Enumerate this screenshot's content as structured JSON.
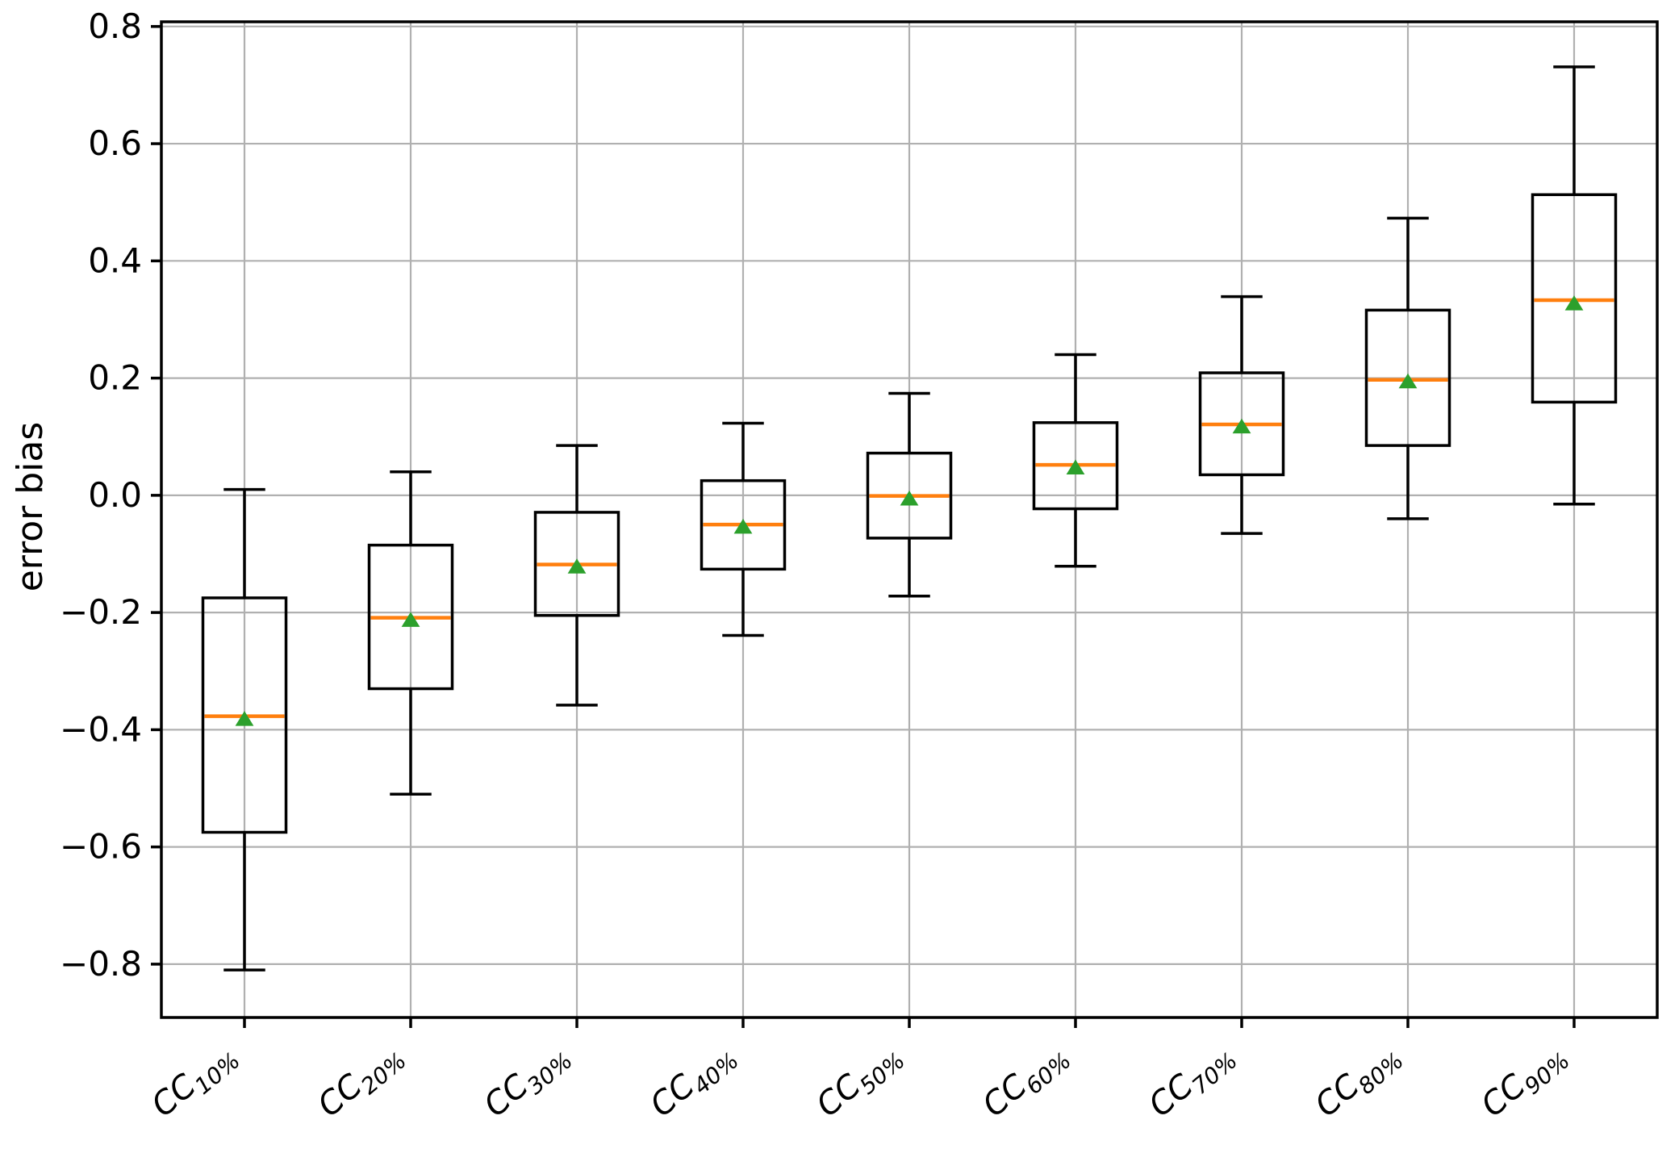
{
  "figure": {
    "background": "#ffffff",
    "y_axis_label": "error bias"
  },
  "chart_data": {
    "type": "box",
    "title": "",
    "xlabel": "",
    "ylabel": "error bias",
    "grid": true,
    "orientation": "vertical",
    "ylim": [
      -0.891,
      0.808
    ],
    "y_ticks": [
      {
        "value": 0.8,
        "label": "0.8"
      },
      {
        "value": 0.6,
        "label": "0.6"
      },
      {
        "value": 0.4,
        "label": "0.4"
      },
      {
        "value": 0.2,
        "label": "0.2"
      },
      {
        "value": 0.0,
        "label": "0.0"
      },
      {
        "value": -0.2,
        "label": "−0.2"
      },
      {
        "value": -0.4,
        "label": "−0.4"
      },
      {
        "value": -0.6,
        "label": "−0.6"
      },
      {
        "value": -0.8,
        "label": "−0.8"
      }
    ],
    "categories": [
      "CC10%",
      "CC20%",
      "CC30%",
      "CC40%",
      "CC50%",
      "CC60%",
      "CC70%",
      "CC80%",
      "CC90%"
    ],
    "boxes": [
      {
        "label_base": "CC",
        "label_sub": "10%",
        "whisker_low": -0.81,
        "q1": -0.575,
        "median": -0.377,
        "mean": -0.381,
        "q3": -0.175,
        "whisker_high": 0.01
      },
      {
        "label_base": "CC",
        "label_sub": "20%",
        "whisker_low": -0.51,
        "q1": -0.33,
        "median": -0.209,
        "mean": -0.212,
        "q3": -0.085,
        "whisker_high": 0.04
      },
      {
        "label_base": "CC",
        "label_sub": "30%",
        "whisker_low": -0.358,
        "q1": -0.205,
        "median": -0.118,
        "mean": -0.121,
        "q3": -0.029,
        "whisker_high": 0.085
      },
      {
        "label_base": "CC",
        "label_sub": "40%",
        "whisker_low": -0.239,
        "q1": -0.126,
        "median": -0.05,
        "mean": -0.053,
        "q3": 0.025,
        "whisker_high": 0.123
      },
      {
        "label_base": "CC",
        "label_sub": "50%",
        "whisker_low": -0.172,
        "q1": -0.073,
        "median": -0.001,
        "mean": -0.005,
        "q3": 0.072,
        "whisker_high": 0.174
      },
      {
        "label_base": "CC",
        "label_sub": "60%",
        "whisker_low": -0.121,
        "q1": -0.023,
        "median": 0.052,
        "mean": 0.048,
        "q3": 0.124,
        "whisker_high": 0.24
      },
      {
        "label_base": "CC",
        "label_sub": "70%",
        "whisker_low": -0.065,
        "q1": 0.035,
        "median": 0.121,
        "mean": 0.118,
        "q3": 0.209,
        "whisker_high": 0.339
      },
      {
        "label_base": "CC",
        "label_sub": "80%",
        "whisker_low": -0.04,
        "q1": 0.085,
        "median": 0.197,
        "mean": 0.195,
        "q3": 0.316,
        "whisker_high": 0.473
      },
      {
        "label_base": "CC",
        "label_sub": "90%",
        "whisker_low": -0.015,
        "q1": 0.159,
        "median": 0.333,
        "mean": 0.328,
        "q3": 0.513,
        "whisker_high": 0.731
      }
    ],
    "style": {
      "box_edge_color": "#000000",
      "whisker_color": "#000000",
      "median_color": "#ff7f0e",
      "mean_marker": "triangle-up",
      "mean_marker_color": "#2ca02c",
      "grid_color": "#b0b0b0",
      "text_color": "#000000",
      "box_fill": "none"
    }
  }
}
